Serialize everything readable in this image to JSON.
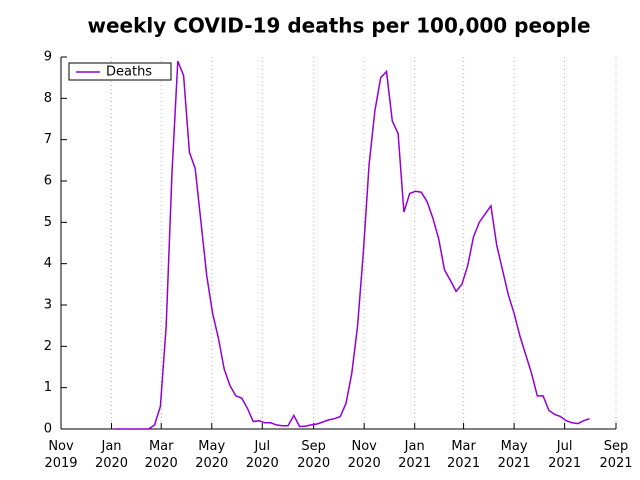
{
  "chart_data": {
    "type": "line",
    "title": "weekly COVID-19 deaths per 100,000 people",
    "x": [
      "2020-01-04",
      "2020-01-11",
      "2020-01-18",
      "2020-01-25",
      "2020-02-01",
      "2020-02-08",
      "2020-02-15",
      "2020-02-22",
      "2020-02-29",
      "2020-03-07",
      "2020-03-14",
      "2020-03-21",
      "2020-03-28",
      "2020-04-04",
      "2020-04-11",
      "2020-04-18",
      "2020-04-25",
      "2020-05-02",
      "2020-05-09",
      "2020-05-16",
      "2020-05-23",
      "2020-05-30",
      "2020-06-06",
      "2020-06-13",
      "2020-06-20",
      "2020-06-27",
      "2020-07-04",
      "2020-07-11",
      "2020-07-18",
      "2020-07-25",
      "2020-08-01",
      "2020-08-08",
      "2020-08-15",
      "2020-08-22",
      "2020-08-29",
      "2020-09-05",
      "2020-09-12",
      "2020-09-19",
      "2020-09-26",
      "2020-10-03",
      "2020-10-10",
      "2020-10-17",
      "2020-10-24",
      "2020-10-31",
      "2020-11-07",
      "2020-11-14",
      "2020-11-21",
      "2020-11-28",
      "2020-12-05",
      "2020-12-12",
      "2020-12-19",
      "2020-12-26",
      "2021-01-02",
      "2021-01-09",
      "2021-01-16",
      "2021-01-23",
      "2021-01-30",
      "2021-02-06",
      "2021-02-13",
      "2021-02-20",
      "2021-02-27",
      "2021-03-06",
      "2021-03-13",
      "2021-03-20",
      "2021-03-27",
      "2021-04-03",
      "2021-04-10",
      "2021-04-17",
      "2021-04-24",
      "2021-05-01",
      "2021-05-08",
      "2021-05-15",
      "2021-05-22",
      "2021-05-29",
      "2021-06-05",
      "2021-06-12",
      "2021-06-19",
      "2021-06-26",
      "2021-07-03",
      "2021-07-10",
      "2021-07-17",
      "2021-07-24",
      "2021-07-31"
    ],
    "series": [
      {
        "name": "Deaths",
        "color": "#9400d3",
        "values": [
          0,
          0,
          0,
          0,
          0,
          0,
          0,
          0.1,
          0.55,
          2.5,
          6.2,
          8.9,
          8.55,
          6.7,
          6.3,
          5.0,
          3.7,
          2.8,
          2.2,
          1.45,
          1.05,
          0.8,
          0.75,
          0.5,
          0.18,
          0.2,
          0.15,
          0.15,
          0.1,
          0.08,
          0.08,
          0.33,
          0.06,
          0.07,
          0.1,
          0.12,
          0.17,
          0.22,
          0.25,
          0.3,
          0.62,
          1.35,
          2.5,
          4.3,
          6.4,
          7.7,
          8.5,
          8.65,
          7.45,
          7.15,
          5.25,
          5.7,
          5.75,
          5.73,
          5.5,
          5.1,
          4.6,
          3.85,
          3.6,
          3.33,
          3.5,
          3.95,
          4.65,
          5.0,
          5.2,
          5.4,
          4.45,
          3.85,
          3.25,
          2.8,
          2.25,
          1.8,
          1.35,
          0.8,
          0.8,
          0.45,
          0.35,
          0.3,
          0.2,
          0.15,
          0.13,
          0.2,
          0.25
        ]
      }
    ],
    "xlim": [
      "2019-11-01",
      "2021-09-01"
    ],
    "xticks": [
      {
        "value": "2019-11-01",
        "label": "Nov 2019"
      },
      {
        "value": "2020-01-01",
        "label": "Jan 2020"
      },
      {
        "value": "2020-03-01",
        "label": "Mar 2020"
      },
      {
        "value": "2020-05-01",
        "label": "May 2020"
      },
      {
        "value": "2020-07-01",
        "label": "Jul 2020"
      },
      {
        "value": "2020-09-01",
        "label": "Sep 2020"
      },
      {
        "value": "2020-11-01",
        "label": "Nov 2020"
      },
      {
        "value": "2021-01-01",
        "label": "Jan 2021"
      },
      {
        "value": "2021-03-01",
        "label": "Mar 2021"
      },
      {
        "value": "2021-05-01",
        "label": "May 2021"
      },
      {
        "value": "2021-07-01",
        "label": "Jul 2021"
      },
      {
        "value": "2021-09-01",
        "label": "Sep 2021"
      }
    ],
    "ylim": [
      0,
      9
    ],
    "yticks": [
      0,
      1,
      2,
      3,
      4,
      5,
      6,
      7,
      8,
      9
    ],
    "grid": "x",
    "legend": "upper left"
  }
}
